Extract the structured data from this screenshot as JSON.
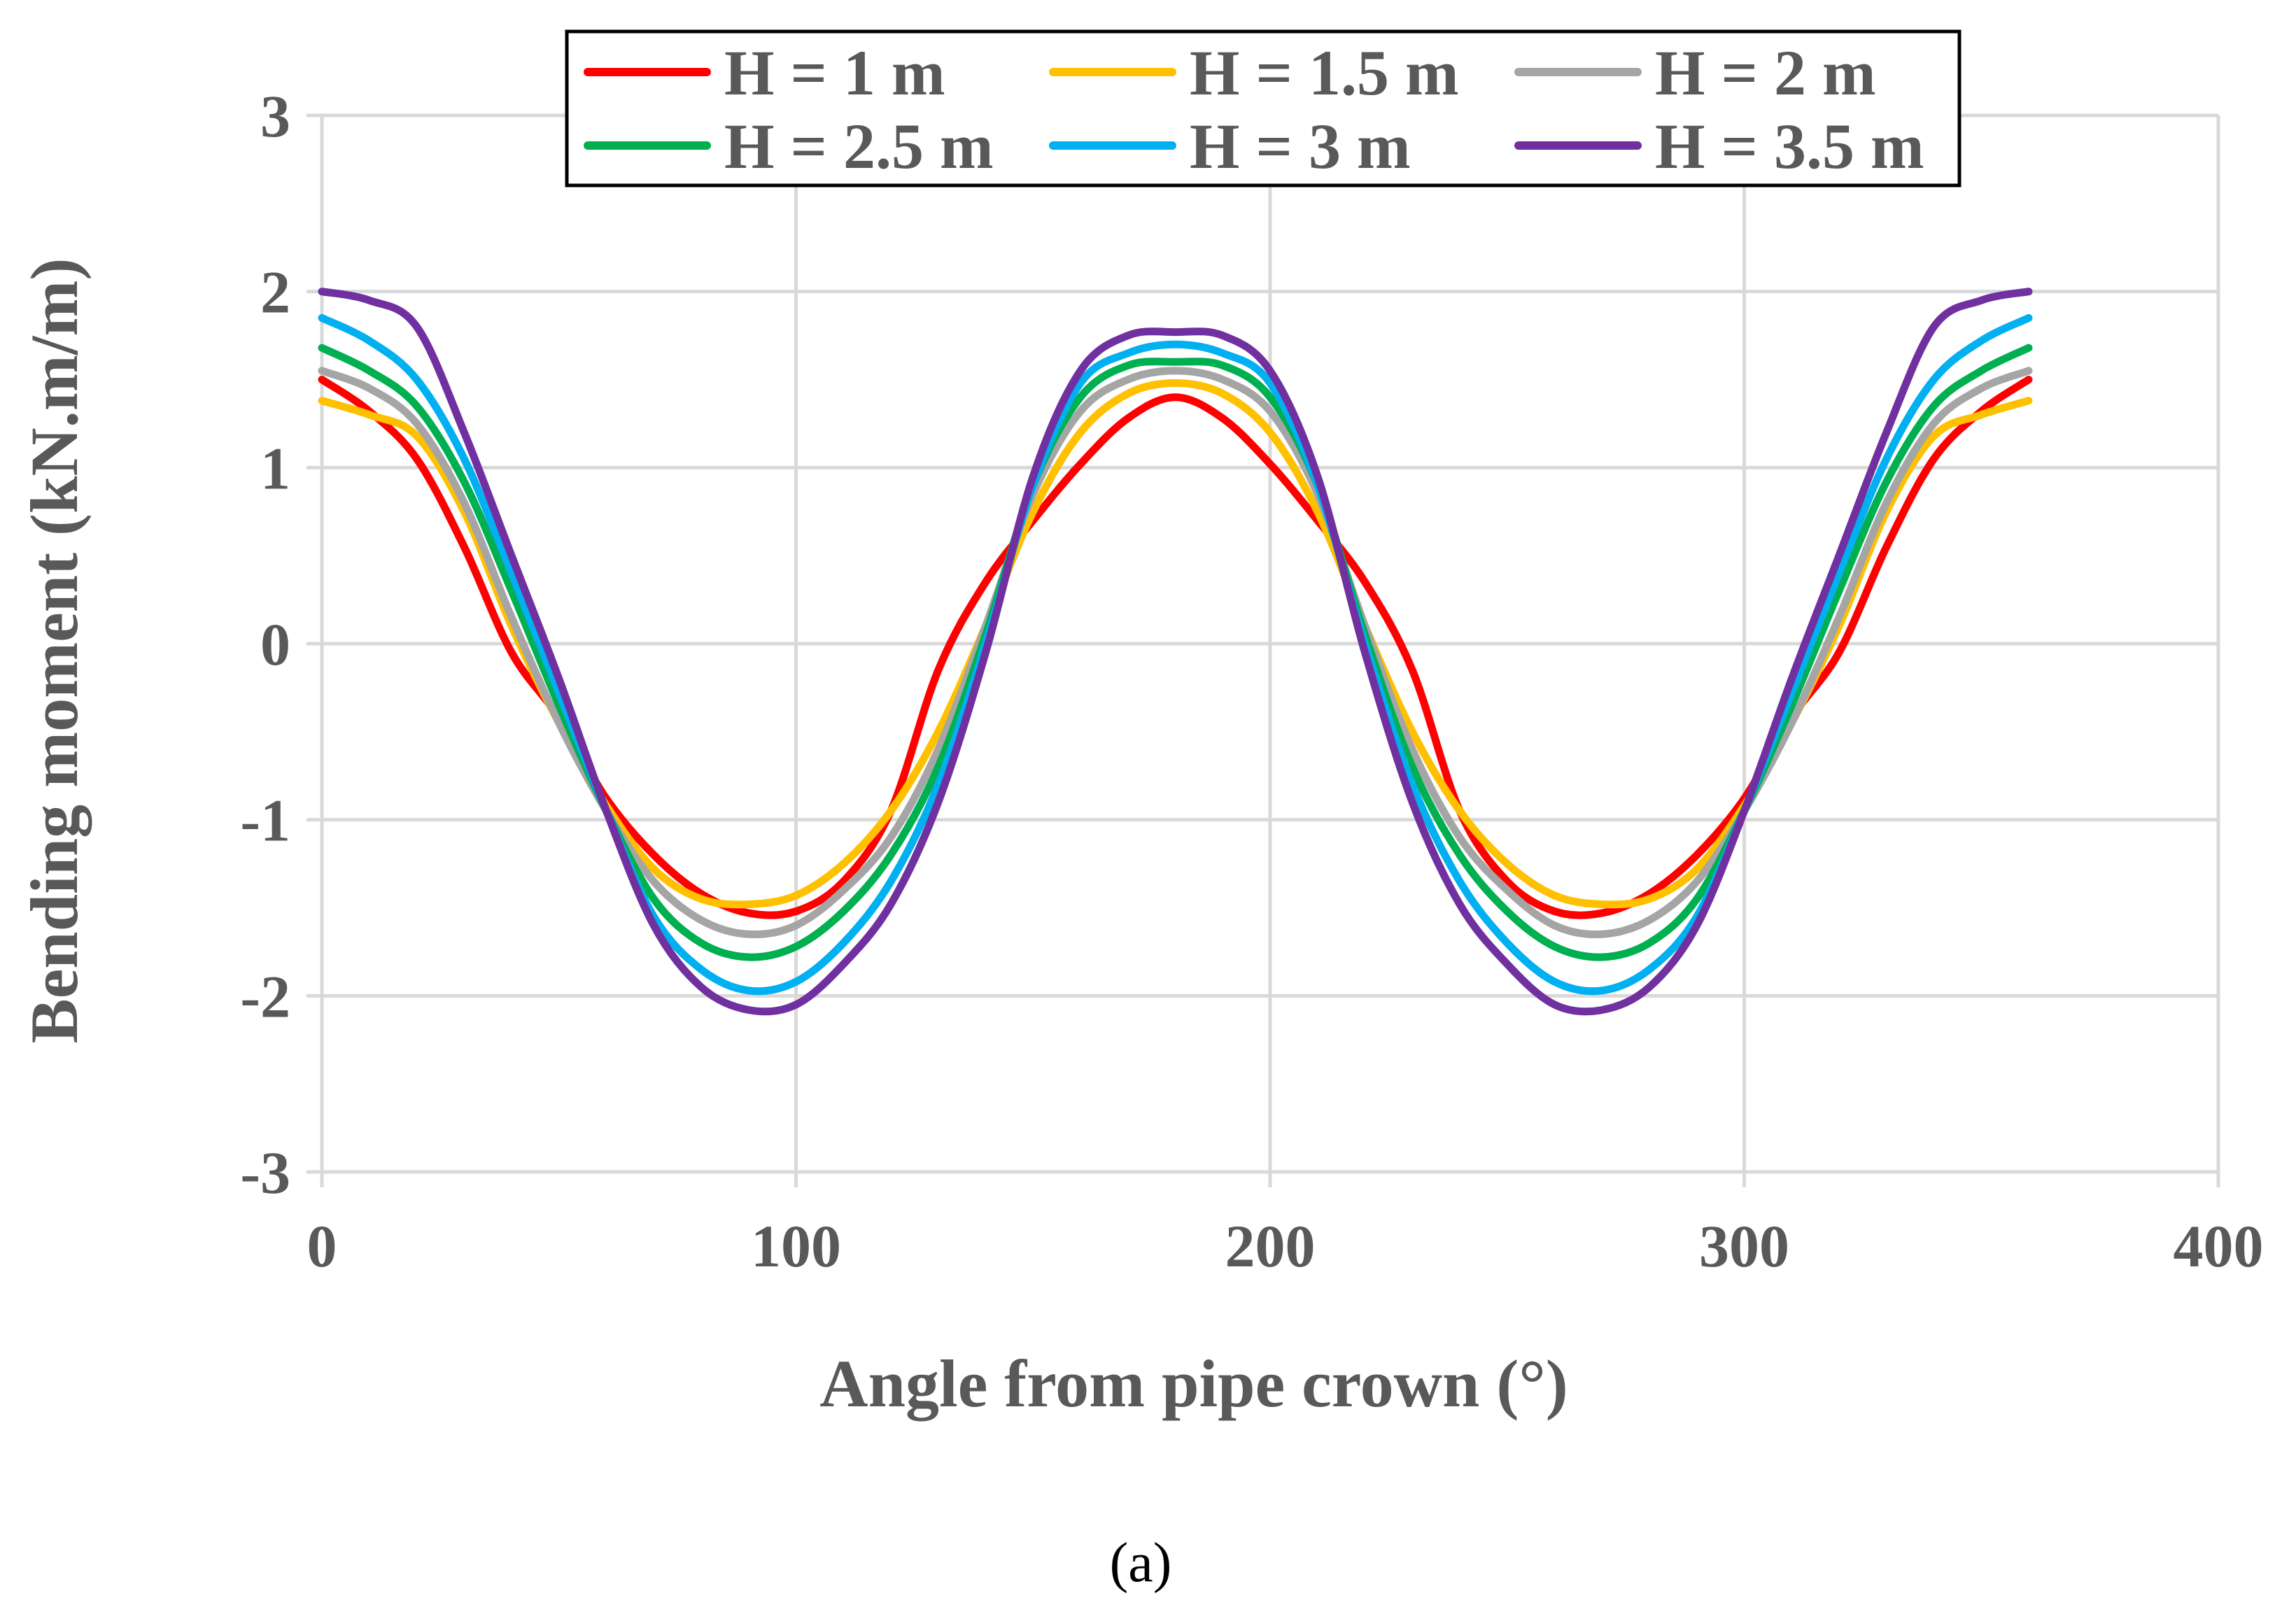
{
  "chart_data": {
    "type": "line",
    "title": "",
    "xlabel": "Angle from pipe crown (°)",
    "ylabel": "Bending moment (kN.m/m)",
    "xlim": [
      0,
      400
    ],
    "ylim": [
      -3,
      3
    ],
    "xticks": [
      0,
      100,
      200,
      300,
      400
    ],
    "yticks": [
      -3,
      -2,
      -1,
      0,
      1,
      2,
      3
    ],
    "xtick_labels": [
      "0",
      "100",
      "200",
      "300",
      "400"
    ],
    "ytick_labels": [
      "-3",
      "-2",
      "-1",
      "0",
      "1",
      "2",
      "3"
    ],
    "grid": true,
    "legend_position": "top-center",
    "caption": "(a)",
    "series": [
      {
        "name": "H = 1 m",
        "color": "#ff0000",
        "x": [
          0,
          10,
          20,
          30,
          40,
          50,
          60,
          70,
          80,
          90,
          100,
          110,
          120,
          130,
          140,
          150,
          160,
          170,
          180,
          190,
          200,
          210,
          220,
          230,
          240,
          250,
          260,
          270,
          280,
          290,
          300,
          310,
          320,
          330,
          340,
          350,
          360
        ],
        "y": [
          1.5,
          1.32,
          1.05,
          0.55,
          -0.05,
          -0.42,
          -0.88,
          -1.2,
          -1.42,
          -1.53,
          -1.52,
          -1.35,
          -0.95,
          -0.15,
          0.35,
          0.7,
          1.02,
          1.28,
          1.4,
          1.28,
          1.02,
          0.7,
          0.35,
          -0.15,
          -0.95,
          -1.35,
          -1.52,
          -1.53,
          -1.42,
          -1.2,
          -0.88,
          -0.42,
          -0.05,
          0.55,
          1.05,
          1.32,
          1.5
        ]
      },
      {
        "name": "H = 1.5 m",
        "color": "#ffc000",
        "x": [
          0,
          10,
          20,
          30,
          40,
          50,
          60,
          70,
          80,
          90,
          100,
          110,
          120,
          130,
          140,
          150,
          160,
          170,
          180,
          190,
          200,
          210,
          220,
          230,
          240,
          250,
          260,
          270,
          280,
          290,
          300,
          310,
          320,
          330,
          340,
          350,
          360
        ],
        "y": [
          1.38,
          1.3,
          1.18,
          0.75,
          0.1,
          -0.45,
          -0.92,
          -1.28,
          -1.45,
          -1.48,
          -1.43,
          -1.25,
          -0.95,
          -0.5,
          0.1,
          0.75,
          1.2,
          1.42,
          1.48,
          1.42,
          1.2,
          0.75,
          0.1,
          -0.5,
          -0.95,
          -1.25,
          -1.43,
          -1.48,
          -1.45,
          -1.28,
          -0.92,
          -0.45,
          0.1,
          0.75,
          1.18,
          1.3,
          1.38
        ]
      },
      {
        "name": "H = 2 m",
        "color": "#a5a5a5",
        "x": [
          0,
          10,
          20,
          30,
          40,
          50,
          60,
          70,
          80,
          90,
          100,
          110,
          120,
          130,
          140,
          150,
          160,
          170,
          180,
          190,
          200,
          210,
          220,
          230,
          240,
          250,
          260,
          270,
          280,
          290,
          300,
          310,
          320,
          330,
          340,
          350,
          360
        ],
        "y": [
          1.55,
          1.45,
          1.25,
          0.8,
          0.15,
          -0.45,
          -0.95,
          -1.35,
          -1.57,
          -1.65,
          -1.6,
          -1.4,
          -1.1,
          -0.6,
          0.1,
          0.85,
          1.32,
          1.5,
          1.55,
          1.5,
          1.32,
          0.85,
          0.1,
          -0.6,
          -1.1,
          -1.4,
          -1.6,
          -1.65,
          -1.57,
          -1.35,
          -0.95,
          -0.45,
          0.15,
          0.8,
          1.25,
          1.45,
          1.55
        ]
      },
      {
        "name": "H = 2.5 m",
        "color": "#00b050",
        "x": [
          0,
          10,
          20,
          30,
          40,
          50,
          60,
          70,
          80,
          90,
          100,
          110,
          120,
          130,
          140,
          150,
          160,
          170,
          180,
          190,
          200,
          210,
          220,
          230,
          240,
          250,
          260,
          270,
          280,
          290,
          300,
          310,
          320,
          330,
          340,
          350,
          360
        ],
        "y": [
          1.68,
          1.55,
          1.35,
          0.92,
          0.3,
          -0.35,
          -0.95,
          -1.45,
          -1.7,
          -1.78,
          -1.72,
          -1.52,
          -1.2,
          -0.7,
          0.05,
          0.9,
          1.4,
          1.58,
          1.6,
          1.58,
          1.4,
          0.9,
          0.05,
          -0.7,
          -1.2,
          -1.52,
          -1.72,
          -1.78,
          -1.7,
          -1.45,
          -0.95,
          -0.35,
          0.3,
          0.92,
          1.35,
          1.55,
          1.68
        ]
      },
      {
        "name": "H = 3 m",
        "color": "#00b0f0",
        "x": [
          0,
          10,
          20,
          30,
          40,
          50,
          60,
          70,
          80,
          90,
          100,
          110,
          120,
          130,
          140,
          150,
          160,
          170,
          180,
          190,
          200,
          210,
          220,
          230,
          240,
          250,
          260,
          270,
          280,
          290,
          300,
          310,
          320,
          330,
          340,
          350,
          360
        ],
        "y": [
          1.85,
          1.72,
          1.5,
          1.05,
          0.4,
          -0.28,
          -0.95,
          -1.55,
          -1.85,
          -1.97,
          -1.92,
          -1.7,
          -1.35,
          -0.8,
          0.0,
          0.9,
          1.48,
          1.65,
          1.7,
          1.65,
          1.48,
          0.9,
          0.0,
          -0.8,
          -1.35,
          -1.7,
          -1.92,
          -1.97,
          -1.85,
          -1.55,
          -0.95,
          -0.28,
          0.4,
          1.05,
          1.5,
          1.72,
          1.85
        ]
      },
      {
        "name": "H = 3.5 m",
        "color": "#7030a0",
        "x": [
          0,
          10,
          20,
          30,
          40,
          50,
          60,
          70,
          80,
          90,
          100,
          110,
          120,
          130,
          140,
          150,
          160,
          170,
          180,
          190,
          200,
          210,
          220,
          230,
          240,
          250,
          260,
          270,
          280,
          290,
          300,
          310,
          320,
          330,
          340,
          350,
          360
        ],
        "y": [
          2.0,
          1.95,
          1.8,
          1.2,
          0.5,
          -0.2,
          -0.95,
          -1.6,
          -1.95,
          -2.08,
          -2.05,
          -1.82,
          -1.48,
          -0.9,
          -0.05,
          0.95,
          1.55,
          1.75,
          1.77,
          1.75,
          1.55,
          0.95,
          -0.05,
          -0.9,
          -1.48,
          -1.82,
          -2.05,
          -2.08,
          -1.95,
          -1.6,
          -0.95,
          -0.2,
          0.5,
          1.2,
          1.8,
          1.95,
          2.0
        ]
      }
    ]
  }
}
